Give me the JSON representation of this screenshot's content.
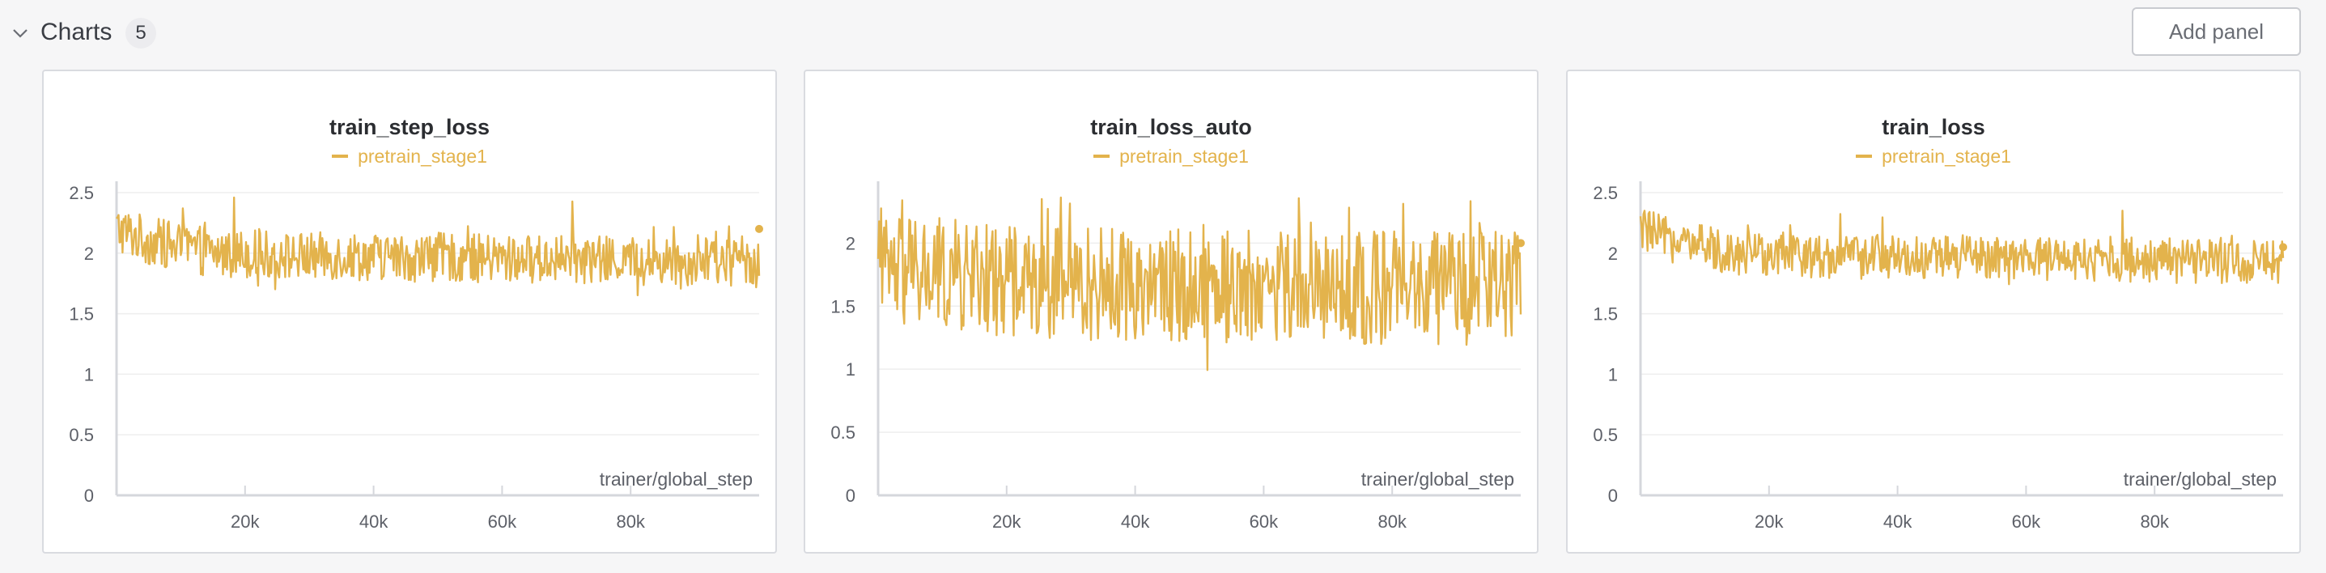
{
  "section": {
    "title": "Charts",
    "count": "5",
    "add_panel_label": "Add panel",
    "chevron_icon": "chevron-down-icon"
  },
  "colors": {
    "series": "#e3b34c",
    "grid": "#eeeeee",
    "axis": "#d5d7dc"
  },
  "panels": [
    {
      "title": "train_step_loss",
      "legend": "pretrain_stage1",
      "xlabel": "trainer/global_step"
    },
    {
      "title": "train_loss_auto",
      "legend": "pretrain_stage1",
      "xlabel": "trainer/global_step"
    },
    {
      "title": "train_loss",
      "legend": "pretrain_stage1",
      "xlabel": "trainer/global_step"
    }
  ],
  "chart_data": [
    {
      "type": "line",
      "title": "train_step_loss",
      "xlabel": "trainer/global_step",
      "ylabel": "",
      "xlim": [
        0,
        100000
      ],
      "ylim": [
        0,
        2.5
      ],
      "yticks": [
        0,
        0.5,
        1,
        1.5,
        2,
        2.5
      ],
      "ytick_labels": [
        "0",
        "0.5",
        "1",
        "1.5",
        "2",
        "2.5"
      ],
      "xticks": [
        20000,
        40000,
        60000,
        80000
      ],
      "xtick_labels": [
        "20k",
        "40k",
        "60k",
        "80k"
      ],
      "legend_position": "top-center",
      "grid": true,
      "series": [
        {
          "name": "pretrain_stage1",
          "color": "#e3b34c",
          "x": [
            0,
            5000,
            10000,
            15000,
            20000,
            25000,
            30000,
            35000,
            40000,
            45000,
            50000,
            55000,
            60000,
            65000,
            70000,
            75000,
            80000,
            85000,
            90000,
            95000,
            100000
          ],
          "y": [
            2.2,
            2.1,
            2.05,
            2.0,
            2.0,
            1.98,
            1.97,
            1.98,
            1.97,
            1.96,
            1.97,
            1.96,
            1.95,
            1.95,
            1.95,
            1.94,
            1.94,
            1.93,
            1.93,
            1.93,
            1.93
          ],
          "spread": 0.2,
          "last_value": 2.2
        }
      ]
    },
    {
      "type": "line",
      "title": "train_loss_auto",
      "xlabel": "trainer/global_step",
      "ylabel": "",
      "xlim": [
        0,
        100000
      ],
      "ylim": [
        0,
        2.4
      ],
      "yticks": [
        0,
        0.5,
        1,
        1.5,
        2
      ],
      "ytick_labels": [
        "0",
        "0.5",
        "1",
        "1.5",
        "2"
      ],
      "xticks": [
        20000,
        40000,
        60000,
        80000
      ],
      "xtick_labels": [
        "20k",
        "40k",
        "60k",
        "80k"
      ],
      "legend_position": "top-center",
      "grid": true,
      "series": [
        {
          "name": "pretrain_stage1",
          "color": "#e3b34c",
          "x": [
            0,
            5000,
            10000,
            15000,
            20000,
            25000,
            30000,
            35000,
            40000,
            45000,
            50000,
            55000,
            60000,
            65000,
            70000,
            75000,
            80000,
            85000,
            90000,
            95000,
            100000
          ],
          "y": [
            1.78,
            1.75,
            1.75,
            1.72,
            1.7,
            1.7,
            1.68,
            1.68,
            1.68,
            1.67,
            1.67,
            1.66,
            1.66,
            1.65,
            1.65,
            1.65,
            1.65,
            1.64,
            1.64,
            1.64,
            1.64
          ],
          "spread": 0.45,
          "last_value": 2.0
        }
      ]
    },
    {
      "type": "line",
      "title": "train_loss",
      "xlabel": "trainer/global_step",
      "ylabel": "",
      "xlim": [
        0,
        100000
      ],
      "ylim": [
        0,
        2.5
      ],
      "yticks": [
        0,
        0.5,
        1,
        1.5,
        2,
        2.5
      ],
      "ytick_labels": [
        "0",
        "0.5",
        "1",
        "1.5",
        "2",
        "2.5"
      ],
      "xticks": [
        20000,
        40000,
        60000,
        80000
      ],
      "xtick_labels": [
        "20k",
        "40k",
        "60k",
        "80k"
      ],
      "legend_position": "top-center",
      "grid": true,
      "series": [
        {
          "name": "pretrain_stage1",
          "color": "#e3b34c",
          "x": [
            0,
            5000,
            10000,
            15000,
            20000,
            25000,
            30000,
            35000,
            40000,
            45000,
            50000,
            55000,
            60000,
            65000,
            70000,
            75000,
            80000,
            85000,
            90000,
            95000,
            100000
          ],
          "y": [
            2.2,
            2.1,
            2.05,
            2.0,
            2.0,
            1.98,
            1.97,
            1.98,
            1.97,
            1.96,
            1.97,
            1.96,
            1.95,
            1.95,
            1.95,
            1.94,
            1.94,
            1.93,
            1.93,
            1.93,
            1.93
          ],
          "spread": 0.18,
          "last_value": 2.05
        }
      ]
    }
  ]
}
